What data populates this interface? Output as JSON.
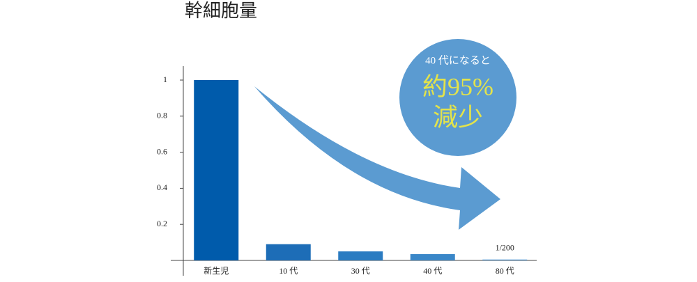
{
  "chart_data": {
    "type": "bar",
    "title": "幹細胞量",
    "categories": [
      "新生児",
      "10 代",
      "30 代",
      "40 代",
      "80 代"
    ],
    "values": [
      1,
      0.09,
      0.05,
      0.035,
      0.005
    ],
    "value_labels": [
      null,
      null,
      null,
      null,
      "1/200"
    ],
    "colors": [
      "#005bab",
      "#1d6db7",
      "#2a7bc1",
      "#3a87c8",
      "#5b9bd3"
    ],
    "ylim": [
      0,
      1
    ],
    "yticks": [
      0.2,
      0.4,
      0.6,
      0.8,
      1
    ],
    "annotations": [
      "40 代になると",
      "約95%",
      "減少"
    ]
  }
}
